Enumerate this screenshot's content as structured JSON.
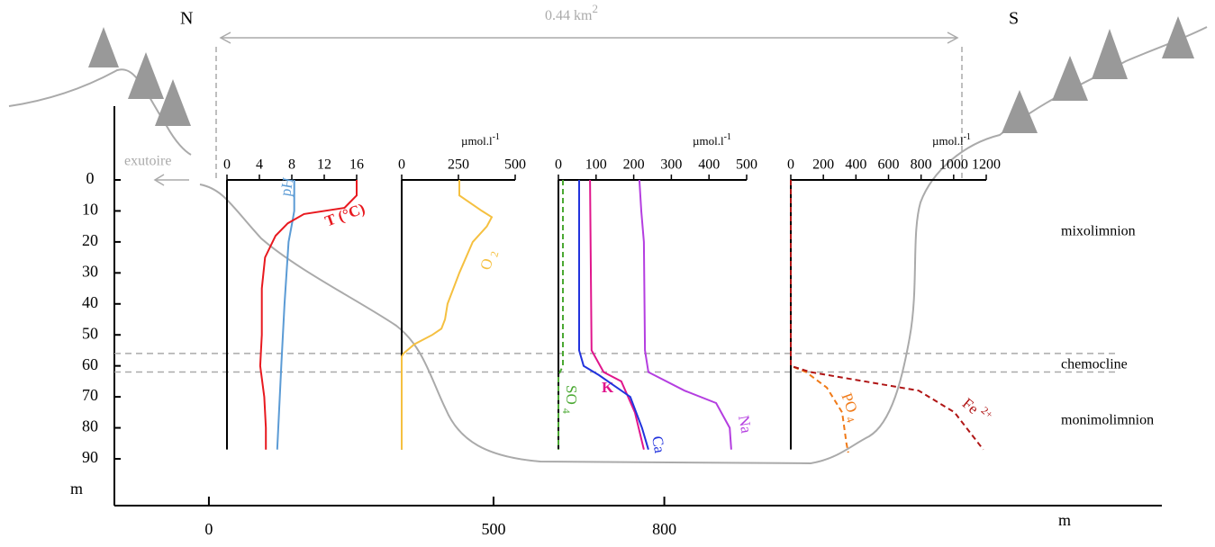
{
  "chart_data": [
    {
      "type": "axes",
      "x_label": "m",
      "y_label": "m",
      "ylim": [
        0,
        90
      ],
      "yticks": [
        0,
        10,
        20,
        30,
        40,
        50,
        60,
        70,
        80,
        90
      ],
      "xlim": [
        -166,
        1674
      ],
      "xticks": [
        0,
        500,
        800
      ]
    },
    {
      "type": "line",
      "xlim": [
        0,
        16
      ],
      "xticks": [
        0,
        4,
        8,
        12,
        16
      ],
      "series": [
        {
          "name": "pH",
          "color": "#5b9bd5",
          "dash": false,
          "depth": [
            0,
            10,
            13,
            20,
            40,
            60,
            87
          ],
          "values": [
            8.3,
            8.3,
            8.1,
            7.6,
            7.1,
            6.7,
            6.2
          ]
        },
        {
          "name": "T (°C)",
          "color": "#e8191f",
          "dash": false,
          "depth": [
            0,
            5,
            9,
            11,
            14,
            18,
            25,
            35,
            50,
            60,
            70,
            80,
            87
          ],
          "values": [
            16,
            16,
            14.5,
            9.5,
            7.5,
            6,
            4.7,
            4.3,
            4.3,
            4.1,
            4.6,
            4.8,
            4.8
          ]
        }
      ]
    },
    {
      "type": "line",
      "unit": "µmol.l",
      "unit_exp": "-1",
      "xlim": [
        0,
        500
      ],
      "xticks": [
        0,
        250,
        500
      ],
      "series": [
        {
          "name": "O",
          "subscript": "2",
          "color": "#f5c040",
          "dash": false,
          "depth": [
            0,
            5,
            10,
            12,
            15,
            20,
            30,
            40,
            45,
            48,
            50,
            53,
            56,
            57,
            87
          ],
          "values": [
            254,
            254,
            353,
            397,
            375,
            313,
            254,
            202,
            191,
            175,
            135,
            56,
            8,
            0,
            0
          ]
        }
      ]
    },
    {
      "type": "line",
      "unit": "µmol.l",
      "unit_exp": "-1",
      "xlim": [
        0,
        500
      ],
      "xticks": [
        0,
        100,
        200,
        300,
        400,
        500
      ],
      "series": [
        {
          "name": "SO",
          "subscript": "4",
          "color": "#4aa832",
          "dash": true,
          "depth": [
            0,
            60,
            63,
            87
          ],
          "values": [
            12,
            12,
            0,
            0
          ]
        },
        {
          "name": "K",
          "color": "#e0168c",
          "dash": false,
          "depth": [
            0,
            55,
            62,
            65,
            75,
            87
          ],
          "values": [
            84,
            88,
            120,
            167,
            203,
            227
          ]
        },
        {
          "name": "Ca",
          "color": "#2233dd",
          "dash": false,
          "depth": [
            0,
            55,
            60,
            63,
            70,
            80,
            87
          ],
          "values": [
            55,
            55,
            67,
            108,
            191,
            222,
            239
          ]
        },
        {
          "name": "Na",
          "color": "#b43ee0",
          "dash": false,
          "depth": [
            0,
            10,
            20,
            55,
            62,
            68,
            72,
            80,
            87
          ],
          "values": [
            215,
            220,
            227,
            230,
            239,
            335,
            419,
            455,
            459
          ]
        }
      ]
    },
    {
      "type": "line",
      "unit": "µmol.l",
      "unit_exp": "-1",
      "xlim": [
        0,
        1200
      ],
      "xticks": [
        0,
        200,
        400,
        600,
        800,
        1000,
        1200
      ],
      "series": [
        {
          "name": "PO",
          "subscript": "4",
          "color": "#f07a18",
          "dash": true,
          "depth": [
            0,
            60,
            62,
            67,
            75,
            85,
            88
          ],
          "values": [
            0,
            0,
            94,
            221,
            315,
            342,
            353
          ]
        },
        {
          "name": "Fe",
          "superscript": "2+",
          "color": "#b01515",
          "dash": true,
          "depth": [
            0,
            60,
            62,
            65,
            68,
            75,
            87
          ],
          "values": [
            0,
            0,
            121,
            453,
            785,
            1005,
            1182
          ]
        }
      ]
    }
  ],
  "labels": {
    "north": "N",
    "south": "S",
    "area": "0.44 km",
    "area_exp": "2",
    "outlet": "exutoire",
    "mixolimnion": "mixolimnion",
    "chemocline": "chemocline",
    "monimolimnion": "monimolimnion"
  },
  "chemocline_depths": [
    56,
    62
  ]
}
